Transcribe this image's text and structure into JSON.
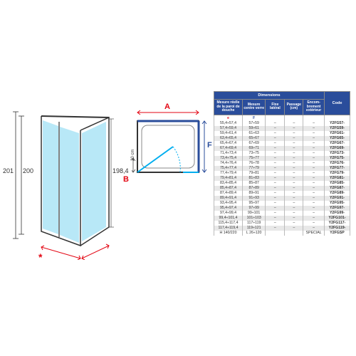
{
  "colors": {
    "brandRed": "#e30613",
    "brandBlue": "#2a4d9b",
    "brandCyan": "#00aeef",
    "grey": "#888",
    "lightGrey": "#e8e8e8"
  },
  "perspective": {
    "height_overall": "201",
    "height_inner": "200",
    "height_glass": "198,4",
    "asterisk": "*"
  },
  "plan": {
    "A": "A",
    "F": "F",
    "B": "B",
    "offset": "20 cm"
  },
  "table": {
    "group_dim": "Dimensions",
    "group_code": "Code",
    "h1": "Mesure réelle de la paroi de douche",
    "h2": "Mesure centre verre",
    "h3": "Fixe latéral",
    "h4": "Passage (cm)",
    "h5": "Encom-brement extérieur",
    "sub_e": "e",
    "sub_f": "F",
    "rows": [
      {
        "a": "55,4÷57,4",
        "b": "57÷59",
        "c": "–",
        "d": "–",
        "e": "–",
        "code": "Y2FG57-"
      },
      {
        "a": "57,4÷59,4",
        "b": "59÷61",
        "c": "–",
        "d": "–",
        "e": "–",
        "code": "Y2FG59-"
      },
      {
        "a": "59,4÷61,4",
        "b": "61÷63",
        "c": "–",
        "d": "–",
        "e": "–",
        "code": "Y2FG61-"
      },
      {
        "a": "63,4÷65,4",
        "b": "65÷67",
        "c": "–",
        "d": "–",
        "e": "–",
        "code": "Y2FG65-"
      },
      {
        "a": "65,4÷67,4",
        "b": "67÷69",
        "c": "–",
        "d": "–",
        "e": "–",
        "code": "Y2FG67-"
      },
      {
        "a": "67,4÷69,4",
        "b": "69÷71",
        "c": "–",
        "d": "–",
        "e": "–",
        "code": "Y2FG69-"
      },
      {
        "a": "71,4÷73,4",
        "b": "73÷75",
        "c": "–",
        "d": "–",
        "e": "–",
        "code": "Y2FG73-"
      },
      {
        "a": "73,4÷75,4",
        "b": "75÷77",
        "c": "–",
        "d": "–",
        "e": "–",
        "code": "Y2FG75-"
      },
      {
        "a": "74,4÷76,4",
        "b": "76÷78",
        "c": "–",
        "d": "–",
        "e": "–",
        "code": "Y2FG76-"
      },
      {
        "a": "75,4÷77,4",
        "b": "77÷79",
        "c": "–",
        "d": "–",
        "e": "–",
        "code": "Y2FG77-"
      },
      {
        "a": "77,4÷79,4",
        "b": "79÷81",
        "c": "–",
        "d": "–",
        "e": "–",
        "code": "Y2FG79-"
      },
      {
        "a": "79,4÷81,4",
        "b": "81÷83",
        "c": "–",
        "d": "–",
        "e": "–",
        "code": "Y2FG81-"
      },
      {
        "a": "83,4÷85,4",
        "b": "85÷87",
        "c": "–",
        "d": "–",
        "e": "–",
        "code": "Y2FG85-"
      },
      {
        "a": "85,4÷87,4",
        "b": "87÷89",
        "c": "–",
        "d": "–",
        "e": "–",
        "code": "Y2FG87-"
      },
      {
        "a": "87,4÷89,4",
        "b": "89÷91",
        "c": "–",
        "d": "–",
        "e": "–",
        "code": "Y2FG89-"
      },
      {
        "a": "89,4÷91,4",
        "b": "91÷93",
        "c": "–",
        "d": "–",
        "e": "–",
        "code": "Y2FG91-"
      },
      {
        "a": "93,4÷95,4",
        "b": "95÷97",
        "c": "–",
        "d": "–",
        "e": "–",
        "code": "Y2FG95-"
      },
      {
        "a": "95,4÷97,4",
        "b": "97÷99",
        "c": "–",
        "d": "–",
        "e": "–",
        "code": "Y2FG97-"
      },
      {
        "a": "97,4÷99,4",
        "b": "99÷101",
        "c": "–",
        "d": "–",
        "e": "–",
        "code": "Y2FG99-"
      },
      {
        "a": "99,4÷101,4",
        "b": "101÷103",
        "c": "–",
        "d": "–",
        "e": "–",
        "code": "Y2FG101-"
      },
      {
        "a": "115,4÷117,4",
        "b": "117÷119",
        "c": "–",
        "d": "–",
        "e": "–",
        "code": "Y2FG117-"
      },
      {
        "a": "117,4÷119,4",
        "b": "119÷121",
        "c": "–",
        "d": "–",
        "e": "–",
        "code": "Y2FG119-"
      }
    ],
    "footer_h": "H 140/220",
    "footer_l": "L 26÷120",
    "footer_sp": "SPECIAL",
    "footer_code": "Y2FGSP"
  }
}
